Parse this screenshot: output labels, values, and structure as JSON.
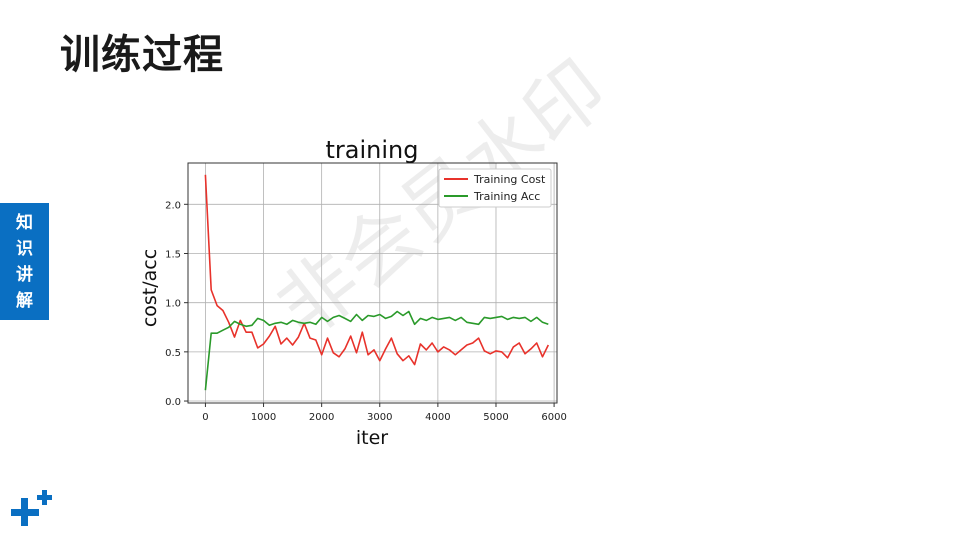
{
  "slide": {
    "title": "训练过程",
    "side_tab": [
      "知",
      "识",
      "讲",
      "解"
    ],
    "watermark": "非会员水印"
  },
  "colors": {
    "accent": "#0a6fc2",
    "cost_series": "#e8322b",
    "acc_series": "#2a9a2a",
    "grid": "#b0b0b0"
  },
  "chart_data": {
    "type": "line",
    "title": "training",
    "xlabel": "iter",
    "ylabel": "cost/acc",
    "xlim": [
      -300,
      6050
    ],
    "ylim": [
      -0.02,
      2.42
    ],
    "xticks": [
      0,
      1000,
      2000,
      3000,
      4000,
      5000,
      6000
    ],
    "yticks": [
      0.0,
      0.5,
      1.0,
      1.5,
      2.0
    ],
    "xtick_labels": [
      "0",
      "1000",
      "2000",
      "3000",
      "4000",
      "5000",
      "6000"
    ],
    "ytick_labels": [
      "0.0",
      "0.5",
      "1.0",
      "1.5",
      "2.0"
    ],
    "grid": true,
    "legend_position": "top-right",
    "x": [
      0,
      100,
      200,
      300,
      400,
      500,
      600,
      700,
      800,
      900,
      1000,
      1100,
      1200,
      1300,
      1400,
      1500,
      1600,
      1700,
      1800,
      1900,
      2000,
      2100,
      2200,
      2300,
      2400,
      2500,
      2600,
      2700,
      2800,
      2900,
      3000,
      3100,
      3200,
      3300,
      3400,
      3500,
      3600,
      3700,
      3800,
      3900,
      4000,
      4100,
      4200,
      4300,
      4400,
      4500,
      4600,
      4700,
      4800,
      4900,
      5000,
      5100,
      5200,
      5300,
      5400,
      5500,
      5600,
      5700,
      5800,
      5900
    ],
    "series": [
      {
        "name": "Training Cost",
        "color": "#e8322b",
        "values": [
          2.3,
          1.13,
          0.97,
          0.92,
          0.8,
          0.65,
          0.82,
          0.7,
          0.7,
          0.54,
          0.58,
          0.66,
          0.76,
          0.58,
          0.64,
          0.57,
          0.65,
          0.79,
          0.64,
          0.62,
          0.47,
          0.64,
          0.49,
          0.45,
          0.53,
          0.66,
          0.49,
          0.7,
          0.47,
          0.52,
          0.41,
          0.53,
          0.64,
          0.48,
          0.41,
          0.46,
          0.37,
          0.58,
          0.52,
          0.59,
          0.5,
          0.55,
          0.52,
          0.47,
          0.52,
          0.57,
          0.59,
          0.64,
          0.51,
          0.48,
          0.51,
          0.5,
          0.44,
          0.55,
          0.59,
          0.48,
          0.53,
          0.59,
          0.45,
          0.57
        ]
      },
      {
        "name": "Training Acc",
        "color": "#2a9a2a",
        "values": [
          0.11,
          0.69,
          0.69,
          0.72,
          0.75,
          0.81,
          0.78,
          0.76,
          0.77,
          0.84,
          0.82,
          0.77,
          0.79,
          0.8,
          0.78,
          0.82,
          0.8,
          0.79,
          0.8,
          0.78,
          0.85,
          0.81,
          0.85,
          0.87,
          0.84,
          0.81,
          0.88,
          0.82,
          0.87,
          0.86,
          0.88,
          0.84,
          0.86,
          0.91,
          0.87,
          0.91,
          0.78,
          0.84,
          0.82,
          0.85,
          0.83,
          0.84,
          0.85,
          0.82,
          0.85,
          0.8,
          0.79,
          0.78,
          0.85,
          0.84,
          0.85,
          0.86,
          0.83,
          0.85,
          0.84,
          0.85,
          0.81,
          0.85,
          0.8,
          0.78
        ]
      }
    ]
  }
}
